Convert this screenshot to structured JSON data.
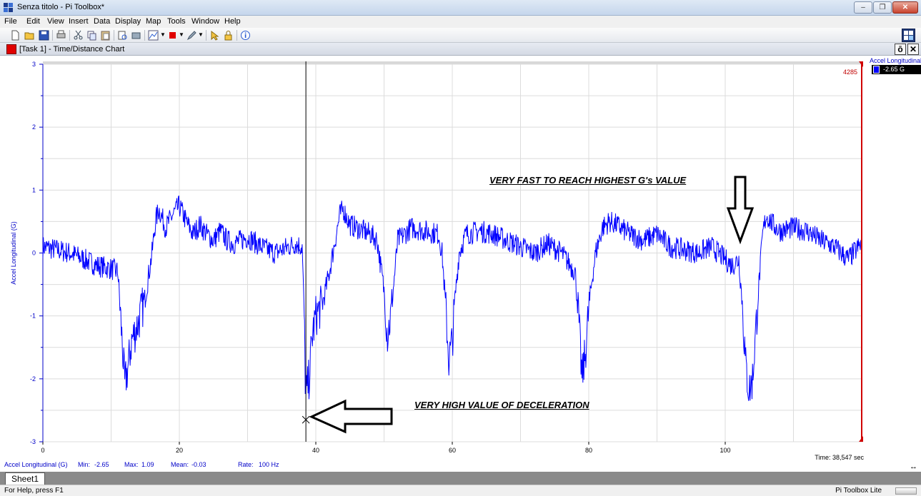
{
  "window": {
    "title": "Senza titolo - Pi Toolbox*",
    "controls": [
      "minimize-icon",
      "restore-icon",
      "close-icon"
    ]
  },
  "menu": [
    "File",
    "Edit",
    "View",
    "Insert",
    "Data",
    "Display",
    "Map",
    "Tools",
    "Window",
    "Help"
  ],
  "toolbar": {
    "icons": [
      "new-file-icon",
      "open-folder-icon",
      "save-icon",
      "print-icon",
      "cut-icon",
      "copy-icon",
      "paste-icon",
      "print-preview-icon",
      "export-icon",
      "chart-type-icon",
      "color-icon",
      "pen-icon",
      "lock-icon",
      "pointer-icon",
      "about-icon",
      "layout-icon"
    ]
  },
  "chart_window": {
    "title": "[Task 1] - Time/Distance Chart",
    "pin_label": "ō",
    "close_label": "✕"
  },
  "chart_data": {
    "type": "line",
    "title": "",
    "xlabel": "",
    "ylabel": "Accel Longitudinal (G)",
    "xlim": [
      0,
      120
    ],
    "ylim": [
      -3,
      3
    ],
    "x_ticks": [
      0,
      20,
      40,
      60,
      80,
      100
    ],
    "y_ticks": [
      -3,
      -2,
      -1,
      0,
      1,
      2,
      3
    ],
    "grid": true,
    "legend_position": "top-right",
    "end_marker_label": "4285",
    "cursor": {
      "x": 38.547,
      "y": -2.65
    },
    "series": [
      {
        "name": "Accel Longitudinal",
        "color": "#0000ff",
        "x": [
          0,
          2,
          4,
          6,
          8,
          10,
          11,
          11.5,
          12,
          12.5,
          13,
          14,
          15,
          16,
          16.5,
          17,
          18,
          19,
          20,
          21,
          22,
          23,
          24,
          25,
          26,
          27,
          28,
          30,
          32,
          34,
          36,
          37,
          38,
          38.3,
          38.5,
          39,
          39.5,
          40,
          41,
          42,
          43,
          43.5,
          44,
          45,
          46,
          47,
          48,
          49,
          50,
          50.5,
          51,
          51.5,
          52,
          53,
          54,
          56,
          58,
          58.5,
          59,
          59.5,
          60,
          60.5,
          61,
          62,
          64,
          66,
          68,
          70,
          72,
          74,
          76,
          78,
          78.5,
          79,
          79.5,
          80,
          80.5,
          81,
          82,
          83,
          84,
          86,
          88,
          90,
          92,
          94,
          96,
          98,
          100,
          101,
          102,
          102.5,
          103,
          103.5,
          104,
          104.5,
          105,
          105.5,
          106,
          107,
          108,
          110,
          112,
          114,
          116,
          118,
          120
        ],
        "y": [
          0.1,
          0.05,
          0.0,
          -0.1,
          -0.2,
          -0.25,
          -0.3,
          -1.2,
          -2.1,
          -1.8,
          -1.4,
          -1.1,
          -0.7,
          0.0,
          0.5,
          0.7,
          0.4,
          0.6,
          0.75,
          0.5,
          0.3,
          0.45,
          0.3,
          0.2,
          0.35,
          0.2,
          0.15,
          0.25,
          0.1,
          0.0,
          0.1,
          0.15,
          0.1,
          -1.0,
          -2.3,
          -2.0,
          -1.3,
          -1.0,
          -0.8,
          -0.3,
          0.3,
          0.6,
          0.7,
          0.45,
          0.4,
          0.35,
          0.3,
          0.2,
          -0.6,
          -1.3,
          -1.0,
          -0.4,
          0.2,
          0.3,
          0.4,
          0.35,
          0.3,
          0.0,
          -0.8,
          -1.7,
          -1.4,
          -0.6,
          0.0,
          0.3,
          0.35,
          0.3,
          0.2,
          0.1,
          0.0,
          0.15,
          0.0,
          -0.3,
          -1.0,
          -2.0,
          -1.6,
          -0.9,
          -0.4,
          0.0,
          0.4,
          0.5,
          0.45,
          0.3,
          0.2,
          0.3,
          0.1,
          0.05,
          0.0,
          0.1,
          -0.1,
          -0.2,
          -0.1,
          -0.8,
          -1.8,
          -2.2,
          -2.0,
          -1.2,
          -0.4,
          0.3,
          0.6,
          0.45,
          0.35,
          0.4,
          0.35,
          0.2,
          0.1,
          -0.1,
          0.15
        ]
      }
    ]
  },
  "legend": {
    "label": "Accel Longitudinal",
    "value": "-2.65 G"
  },
  "stats": {
    "channel": "Accel Longitudinal (G)",
    "min_label": "Min:",
    "min_value": "-2.65",
    "max_label": "Max:",
    "max_value": "1.09",
    "mean_label": "Mean:",
    "mean_value": "-0.03",
    "rate_label": "Rate:",
    "rate_value": "100 Hz"
  },
  "time_readout": "Time: 38,547 sec",
  "annotations": {
    "top": "VERY FAST TO REACH HIGHEST G's VALUE",
    "bottom": "VERY HIGH VALUE OF DECELERATION"
  },
  "sheet_tab": "Sheet1",
  "status": {
    "left": "For Help, press F1",
    "right": "Pi Toolbox Lite"
  }
}
